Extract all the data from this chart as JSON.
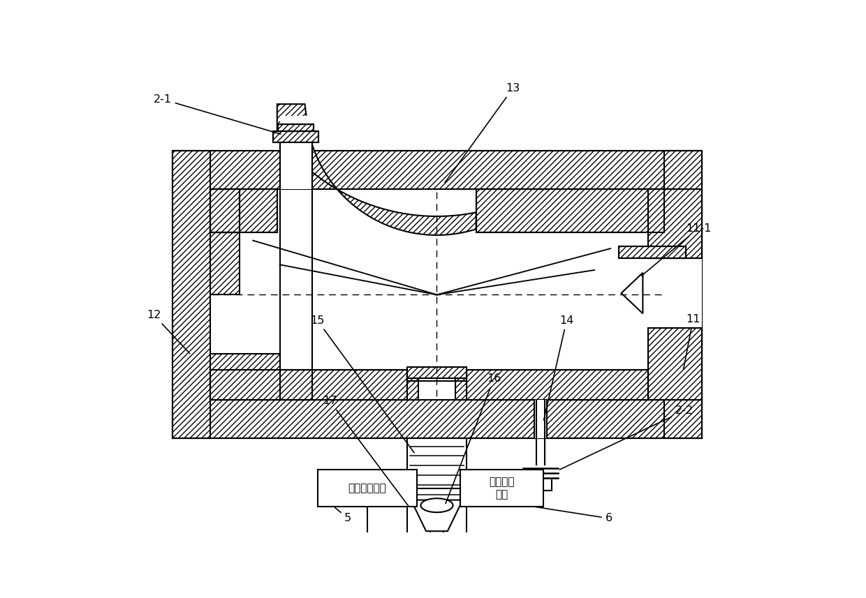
{
  "bg": "#ffffff",
  "lc": "#000000",
  "box1_text": "信号解调模块",
  "box2_text": "信号处理\n单元",
  "fig_w": 12.4,
  "fig_h": 8.57,
  "dpi": 100
}
